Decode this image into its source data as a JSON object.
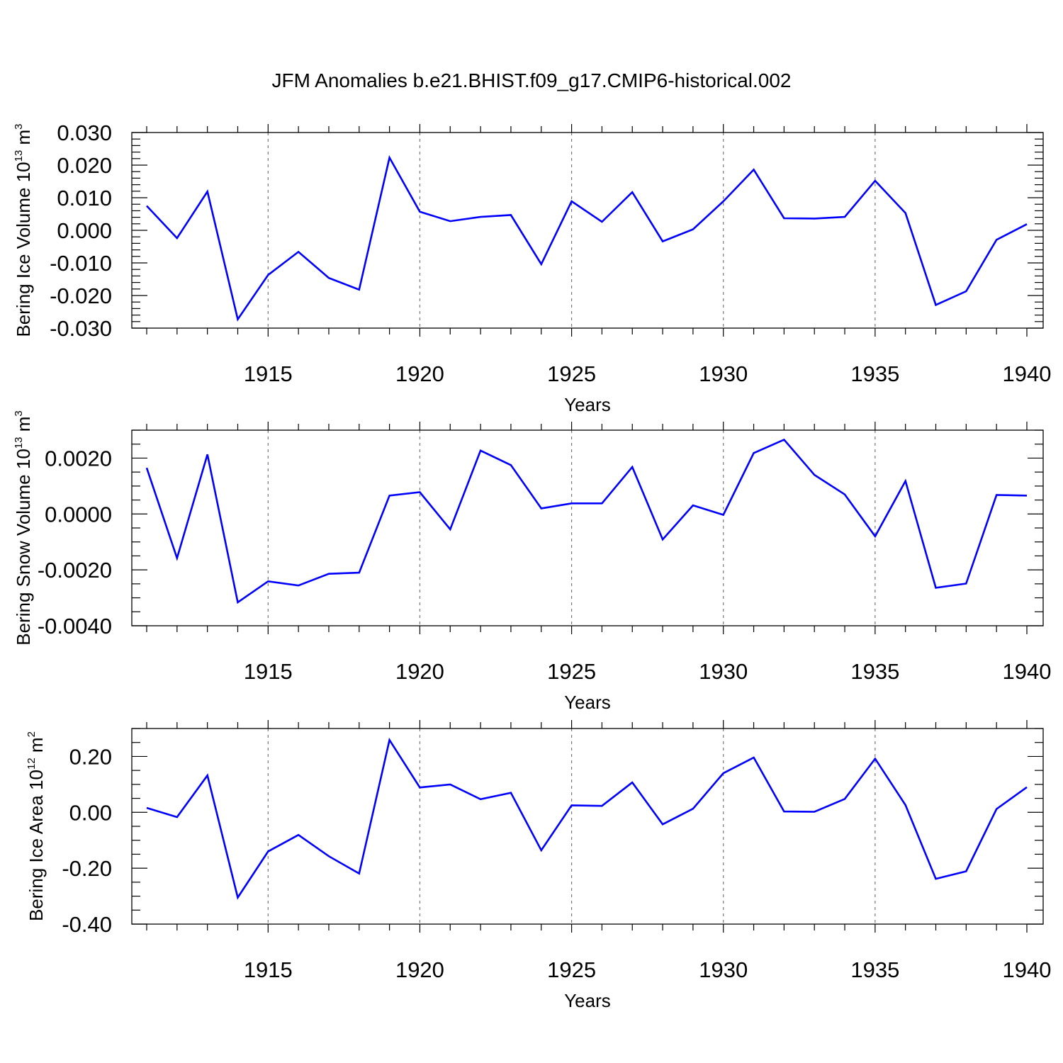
{
  "figure_title": "JFM Anomalies b.e21.BHIST.f09_g17.CMIP6-historical.002",
  "colors": {
    "line": "#0000ff",
    "axis": "#000000",
    "grid": "#777777"
  },
  "chart_data": [
    {
      "type": "line",
      "xlabel": "Years",
      "ylabel": {
        "text": "Bering Ice Volume 10",
        "exponent": "13",
        "unit": "m",
        "unit_exponent": "3"
      },
      "x": [
        1911,
        1912,
        1913,
        1914,
        1915,
        1916,
        1917,
        1918,
        1919,
        1920,
        1921,
        1922,
        1923,
        1924,
        1925,
        1926,
        1927,
        1928,
        1929,
        1930,
        1931,
        1932,
        1933,
        1934,
        1935,
        1936,
        1937,
        1938,
        1939,
        1940
      ],
      "values": [
        0.0075,
        -0.0024,
        0.0119,
        -0.0273,
        -0.0137,
        -0.0066,
        -0.0146,
        -0.0182,
        0.0223,
        0.0057,
        0.0028,
        0.0041,
        0.0047,
        -0.0104,
        0.0089,
        0.0026,
        0.0117,
        -0.0034,
        0.0003,
        0.0089,
        0.0186,
        0.0037,
        0.0036,
        0.0041,
        0.0152,
        0.0053,
        -0.0229,
        -0.0187,
        -0.0029,
        0.0019
      ],
      "xlim": [
        1911,
        1940
      ],
      "ylim": [
        -0.03,
        0.03
      ],
      "xticks": [
        "1915",
        "1920",
        "1925",
        "1930",
        "1935",
        "1940"
      ],
      "yticks": [
        {
          "value": 0.03,
          "label": "0.030"
        },
        {
          "value": 0.02,
          "label": "0.020"
        },
        {
          "value": 0.01,
          "label": "0.010"
        },
        {
          "value": 0.0,
          "label": "0.000"
        },
        {
          "value": -0.01,
          "label": "-0.010"
        },
        {
          "value": -0.02,
          "label": "-0.020"
        },
        {
          "value": -0.03,
          "label": "-0.030"
        }
      ],
      "y_minor_step": 0.002,
      "grid": "vertical dashed at major x ticks"
    },
    {
      "type": "line",
      "xlabel": "Years",
      "ylabel": {
        "text": "Bering Snow Volume 10",
        "exponent": "13",
        "unit": "m",
        "unit_exponent": "3"
      },
      "x": [
        1911,
        1912,
        1913,
        1914,
        1915,
        1916,
        1917,
        1918,
        1919,
        1920,
        1921,
        1922,
        1923,
        1924,
        1925,
        1926,
        1927,
        1928,
        1929,
        1930,
        1931,
        1932,
        1933,
        1934,
        1935,
        1936,
        1937,
        1938,
        1939,
        1940
      ],
      "values": [
        0.00165,
        -0.00158,
        0.00213,
        -0.00316,
        -0.00241,
        -0.00256,
        -0.00214,
        -0.0021,
        0.00066,
        0.00078,
        -0.00055,
        0.00227,
        0.00175,
        0.0002,
        0.00038,
        0.00038,
        0.00168,
        -0.00091,
        0.00031,
        -3e-05,
        0.00218,
        0.00266,
        0.0014,
        0.0007,
        -0.0008,
        0.00118,
        -0.00264,
        -0.00249,
        0.00068,
        0.00066
      ],
      "xlim": [
        1911,
        1940
      ],
      "ylim": [
        -0.004,
        0.003
      ],
      "xticks": [
        "1915",
        "1920",
        "1925",
        "1930",
        "1935",
        "1940"
      ],
      "yticks": [
        {
          "value": 0.002,
          "label": "0.0020"
        },
        {
          "value": 0.0,
          "label": "0.0000"
        },
        {
          "value": -0.002,
          "label": "-0.0020"
        },
        {
          "value": -0.004,
          "label": "-0.0040"
        }
      ],
      "y_minor_step": 0.0005,
      "grid": "vertical dashed at major x ticks"
    },
    {
      "type": "line",
      "xlabel": "Years",
      "ylabel": {
        "text": "Bering Ice Area 10",
        "exponent": "12",
        "unit": "m",
        "unit_exponent": "2"
      },
      "x": [
        1911,
        1912,
        1913,
        1914,
        1915,
        1916,
        1917,
        1918,
        1919,
        1920,
        1921,
        1922,
        1923,
        1924,
        1925,
        1926,
        1927,
        1928,
        1929,
        1930,
        1931,
        1932,
        1933,
        1934,
        1935,
        1936,
        1937,
        1938,
        1939,
        1940
      ],
      "values": [
        0.016,
        -0.017,
        0.132,
        -0.305,
        -0.14,
        -0.081,
        -0.157,
        -0.219,
        0.259,
        0.089,
        0.1,
        0.047,
        0.07,
        -0.136,
        0.025,
        0.023,
        0.107,
        -0.043,
        0.013,
        0.14,
        0.196,
        0.003,
        0.002,
        0.048,
        0.192,
        0.026,
        -0.238,
        -0.211,
        0.012,
        0.09
      ],
      "xlim": [
        1911,
        1940
      ],
      "ylim": [
        -0.4,
        0.3
      ],
      "xticks": [
        "1915",
        "1920",
        "1925",
        "1930",
        "1935",
        "1940"
      ],
      "yticks": [
        {
          "value": 0.2,
          "label": "0.20"
        },
        {
          "value": 0.0,
          "label": "0.00"
        },
        {
          "value": -0.2,
          "label": "-0.20"
        },
        {
          "value": -0.4,
          "label": "-0.40"
        }
      ],
      "y_minor_step": 0.05,
      "grid": "vertical dashed at major x ticks"
    }
  ]
}
